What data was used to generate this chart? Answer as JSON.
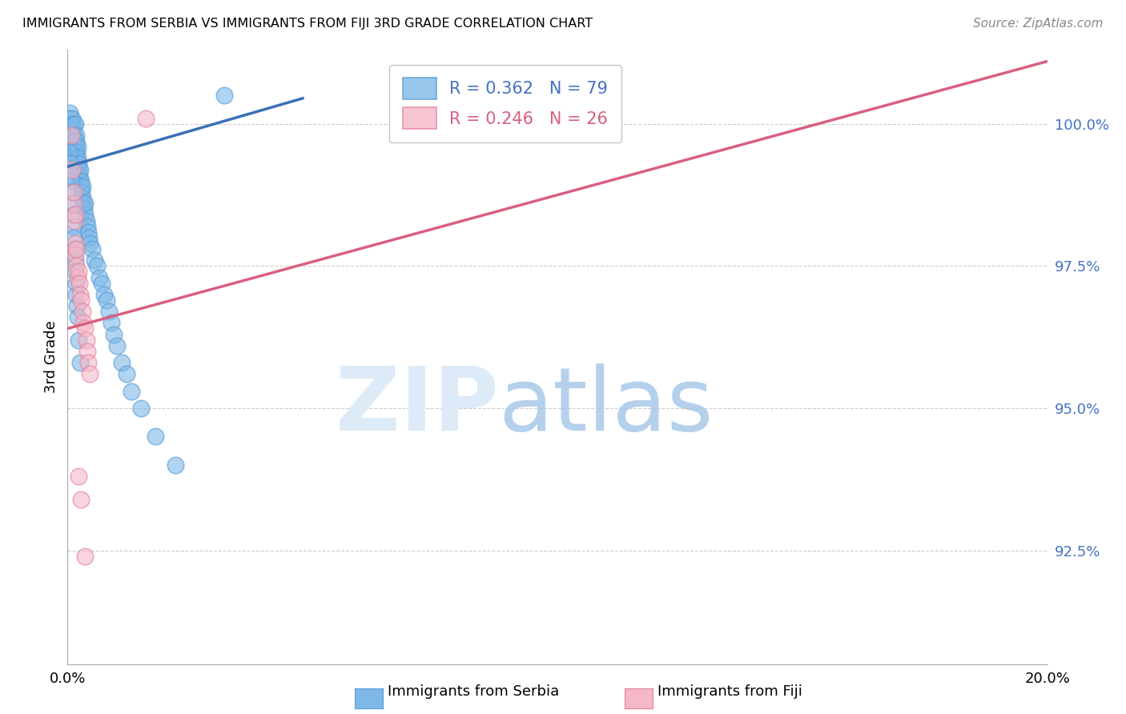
{
  "title": "IMMIGRANTS FROM SERBIA VS IMMIGRANTS FROM FIJI 3RD GRADE CORRELATION CHART",
  "source": "Source: ZipAtlas.com",
  "ylabel": "3rd Grade",
  "xlim": [
    0.0,
    20.0
  ],
  "ylim": [
    90.5,
    101.3
  ],
  "yticks": [
    92.5,
    95.0,
    97.5,
    100.0
  ],
  "ytick_labels": [
    "92.5%",
    "95.0%",
    "97.5%",
    "100.0%"
  ],
  "xtick_positions": [
    0.0,
    4.0,
    8.0,
    12.0,
    16.0,
    20.0
  ],
  "xtick_labels": [
    "0.0%",
    "",
    "",
    "",
    "",
    "20.0%"
  ],
  "blue_color": "#7db8e8",
  "blue_edge_color": "#5b9bd5",
  "pink_color": "#f4b8c8",
  "pink_edge_color": "#e8819a",
  "blue_line_color": "#3a70b5",
  "pink_line_color": "#d86080",
  "blue_trend_x": [
    0.0,
    4.8
  ],
  "blue_trend_y": [
    99.25,
    100.45
  ],
  "pink_trend_x": [
    0.0,
    20.0
  ],
  "pink_trend_y": [
    96.4,
    101.1
  ],
  "serbia_x": [
    0.05,
    0.06,
    0.07,
    0.08,
    0.08,
    0.09,
    0.1,
    0.1,
    0.11,
    0.12,
    0.12,
    0.13,
    0.14,
    0.15,
    0.15,
    0.16,
    0.17,
    0.17,
    0.18,
    0.18,
    0.19,
    0.2,
    0.2,
    0.21,
    0.22,
    0.23,
    0.24,
    0.25,
    0.26,
    0.27,
    0.28,
    0.29,
    0.3,
    0.31,
    0.32,
    0.33,
    0.35,
    0.36,
    0.38,
    0.4,
    0.42,
    0.44,
    0.46,
    0.5,
    0.55,
    0.6,
    0.65,
    0.7,
    0.75,
    0.8,
    0.85,
    0.9,
    0.95,
    1.0,
    1.1,
    1.2,
    1.3,
    1.5,
    1.8,
    2.2,
    0.05,
    0.06,
    0.07,
    0.08,
    0.09,
    0.1,
    0.11,
    0.12,
    0.13,
    0.14,
    0.15,
    0.16,
    0.17,
    0.18,
    0.19,
    0.2,
    0.22,
    0.25,
    3.2
  ],
  "serbia_y": [
    100.2,
    100.1,
    100.0,
    100.0,
    99.9,
    100.0,
    99.8,
    100.1,
    99.9,
    100.0,
    99.7,
    99.8,
    99.6,
    99.7,
    100.0,
    99.5,
    99.6,
    99.8,
    99.4,
    99.7,
    99.5,
    99.3,
    99.6,
    99.4,
    99.2,
    99.3,
    99.1,
    99.0,
    99.2,
    98.9,
    99.0,
    98.8,
    98.7,
    98.9,
    98.6,
    98.5,
    98.4,
    98.6,
    98.3,
    98.2,
    98.1,
    98.0,
    97.9,
    97.8,
    97.6,
    97.5,
    97.3,
    97.2,
    97.0,
    96.9,
    96.7,
    96.5,
    96.3,
    96.1,
    95.8,
    95.6,
    95.3,
    95.0,
    94.5,
    94.0,
    99.5,
    99.3,
    99.1,
    99.0,
    98.8,
    98.6,
    98.4,
    98.2,
    98.0,
    97.8,
    97.6,
    97.4,
    97.2,
    97.0,
    96.8,
    96.6,
    96.2,
    95.8,
    100.5
  ],
  "fiji_x": [
    0.08,
    0.1,
    0.12,
    0.14,
    0.15,
    0.16,
    0.18,
    0.2,
    0.22,
    0.24,
    0.26,
    0.28,
    0.3,
    0.32,
    0.35,
    0.38,
    0.4,
    0.42,
    0.45,
    0.12,
    0.15,
    0.18,
    0.22,
    0.28,
    0.35,
    1.6
  ],
  "fiji_y": [
    99.8,
    99.2,
    98.6,
    98.3,
    97.9,
    97.7,
    97.5,
    97.3,
    97.4,
    97.2,
    97.0,
    96.9,
    96.7,
    96.5,
    96.4,
    96.2,
    96.0,
    95.8,
    95.6,
    98.8,
    98.4,
    97.8,
    93.8,
    93.4,
    92.4,
    100.1
  ]
}
